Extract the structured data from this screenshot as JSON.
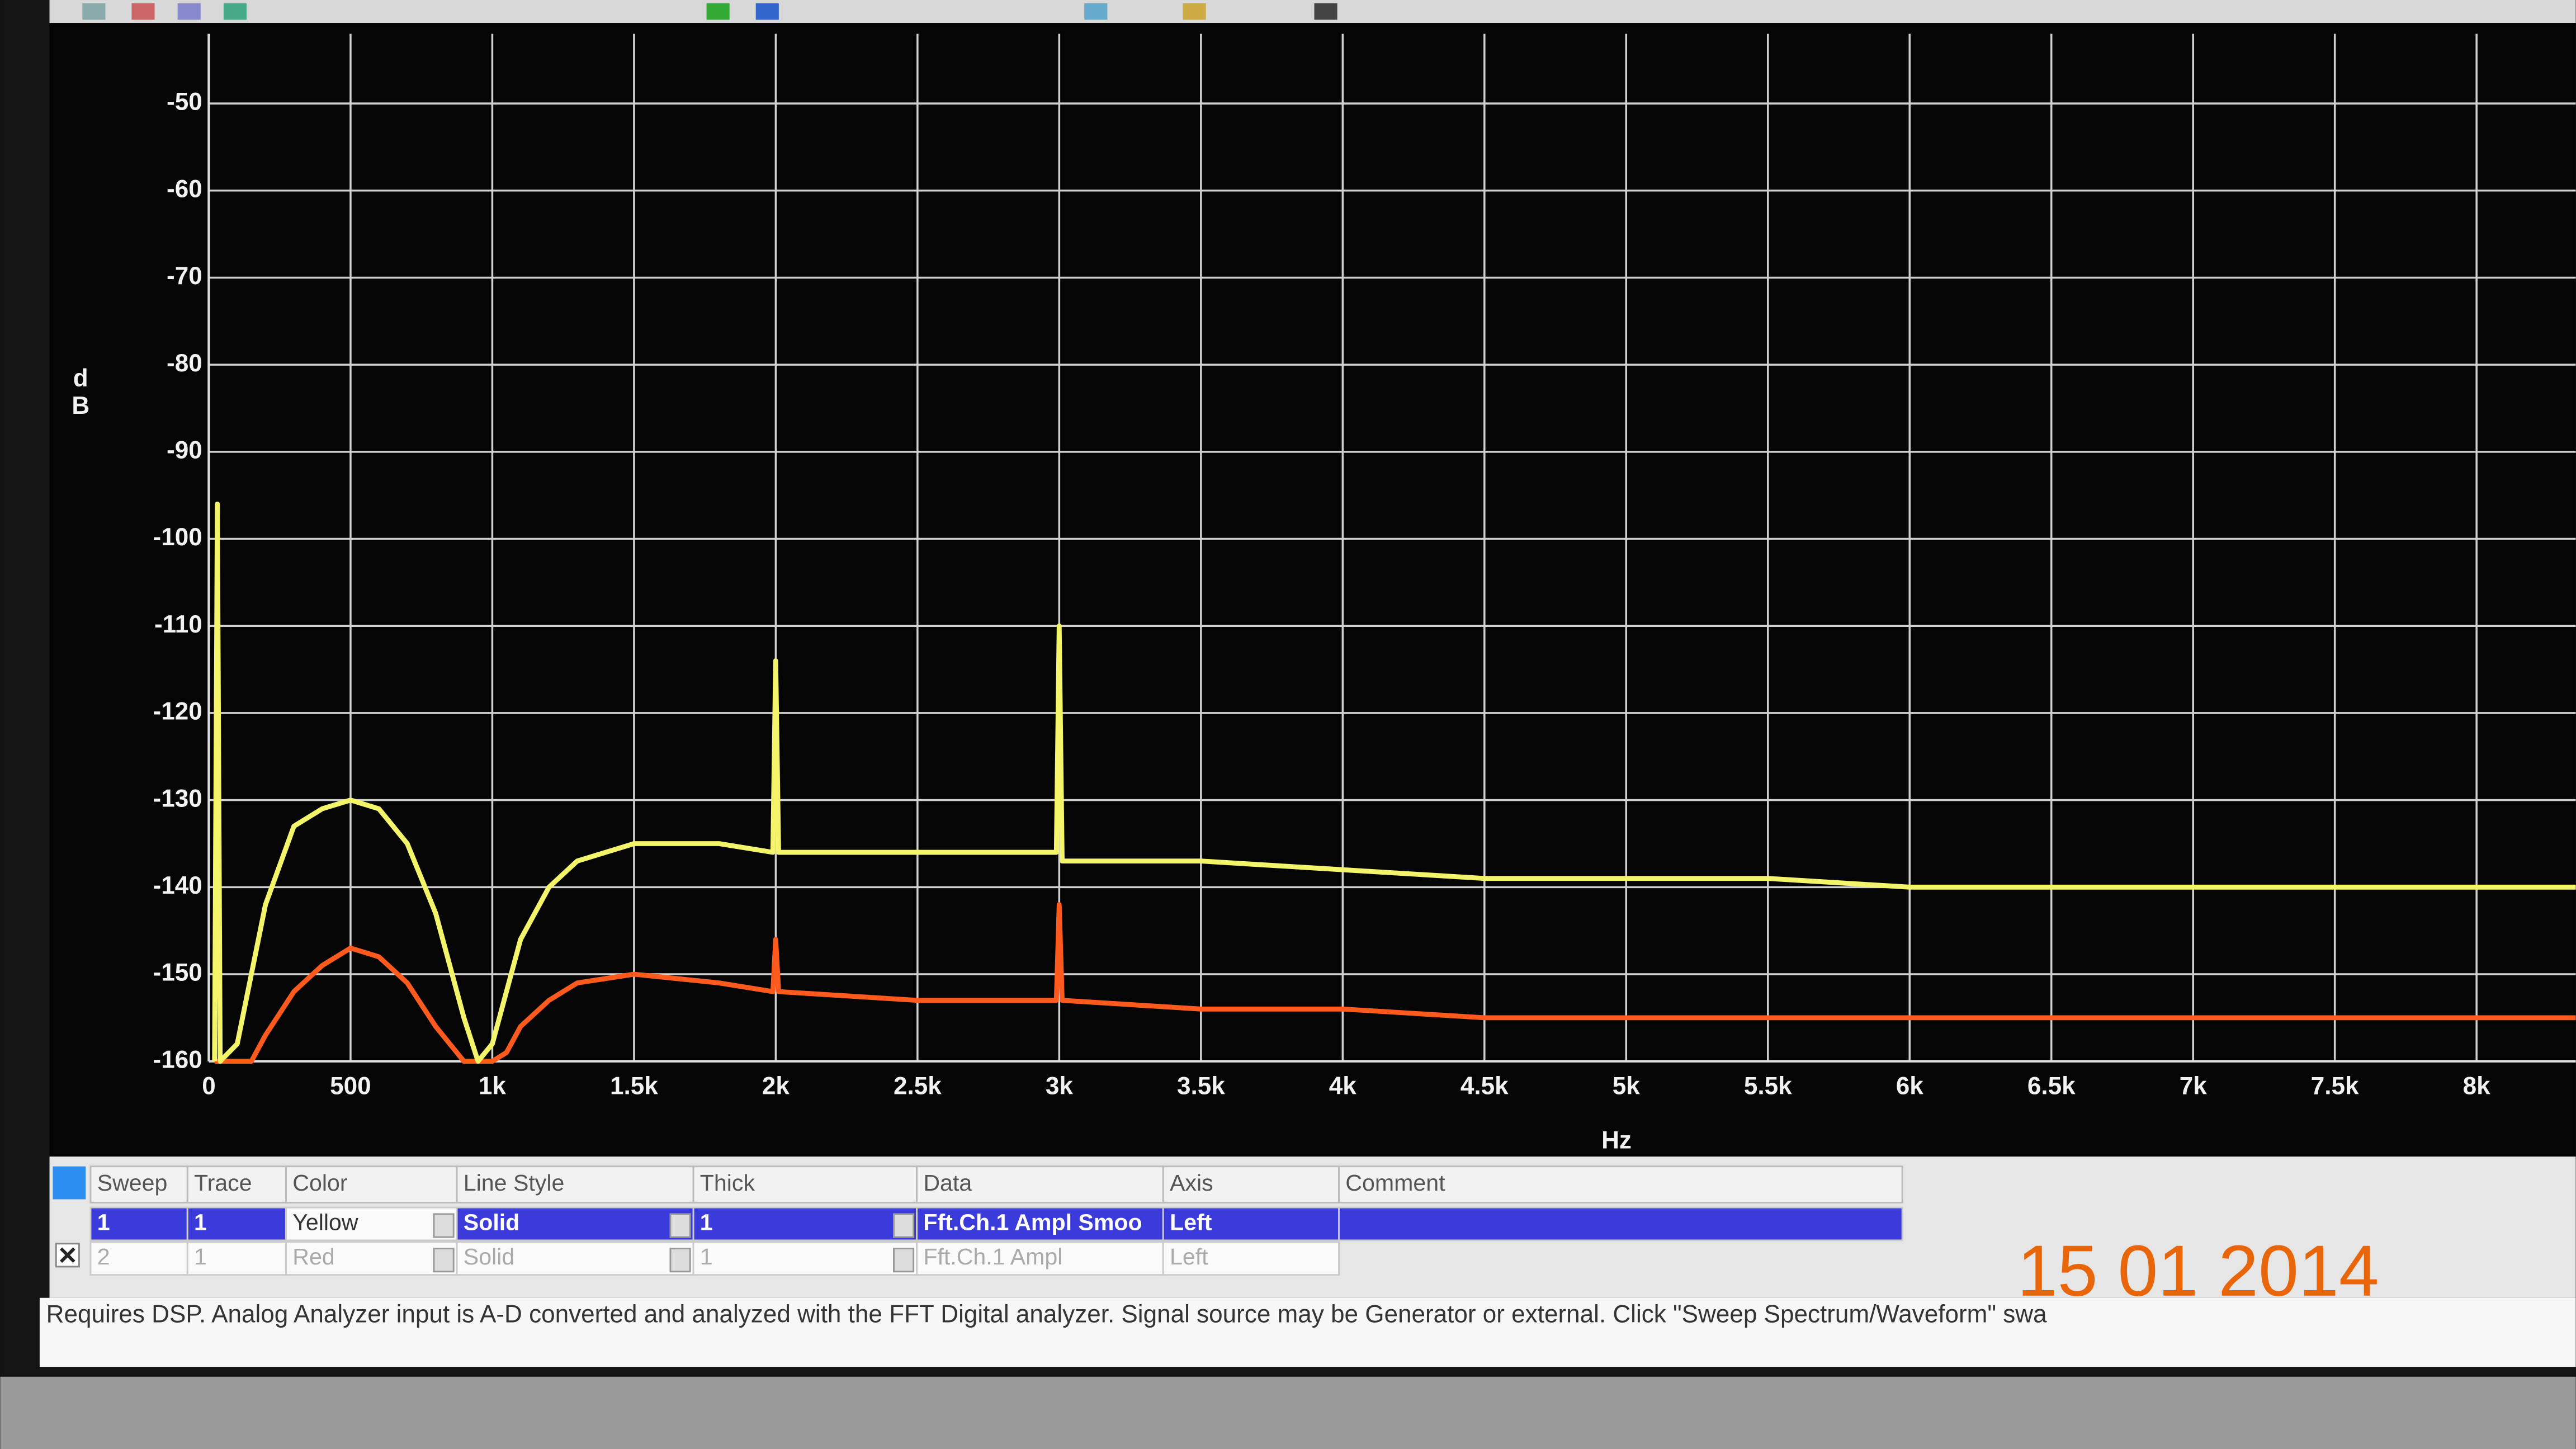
{
  "chart_data": {
    "type": "line",
    "x_label": "Hz",
    "y_label": "dB",
    "x": [
      20,
      30,
      40,
      100,
      150,
      200,
      300,
      400,
      500,
      600,
      700,
      800,
      900,
      950,
      1000,
      1050,
      1100,
      1200,
      1300,
      1500,
      1800,
      1990,
      2000,
      2010,
      2500,
      2990,
      3000,
      3010,
      3500,
      4000,
      4500,
      5000,
      5500,
      6000,
      6500,
      7000,
      7500,
      8000,
      8350
    ],
    "series": [
      {
        "color": "#f4f46a",
        "values": [
          -160,
          -96,
          -160,
          -158,
          -150,
          -142,
          -133,
          -131,
          -130,
          -131,
          -135,
          -143,
          -155,
          -160,
          -158,
          -152,
          -146,
          -140,
          -137,
          -135,
          -135,
          -136,
          -114,
          -136,
          -136,
          -136,
          -110,
          -137,
          -137,
          -138,
          -139,
          -139,
          -139,
          -140,
          -140,
          -140,
          -140,
          -140,
          -140
        ]
      },
      {
        "color": "#ff5a1e",
        "values": [
          -160,
          -160,
          -160,
          -160,
          -160,
          -157,
          -152,
          -149,
          -147,
          -148,
          -151,
          -156,
          -160,
          -160,
          -160,
          -159,
          -156,
          -153,
          -151,
          -150,
          -151,
          -152,
          -146,
          -152,
          -153,
          -153,
          -142,
          -153,
          -154,
          -154,
          -155,
          -155,
          -155,
          -155,
          -155,
          -155,
          -155,
          -155,
          -155
        ]
      }
    ],
    "xlim": [
      0,
      8350
    ],
    "ylim": [
      -160,
      -42
    ],
    "xticks": [
      0,
      500,
      {
        "value": 1000,
        "label": "1k"
      },
      {
        "value": 1500,
        "label": "1.5k"
      },
      {
        "value": 2000,
        "label": "2k"
      },
      {
        "value": 2500,
        "label": "2.5k"
      },
      {
        "value": 3000,
        "label": "3k"
      },
      {
        "value": 3500,
        "label": "3.5k"
      },
      {
        "value": 4000,
        "label": "4k"
      },
      {
        "value": 4500,
        "label": "4.5k"
      },
      {
        "value": 5000,
        "label": "5k"
      },
      {
        "value": 5500,
        "label": "5.5k"
      },
      {
        "value": 6000,
        "label": "6k"
      },
      {
        "value": 6500,
        "label": "6.5k"
      },
      {
        "value": 7000,
        "label": "7k"
      },
      {
        "value": 7500,
        "label": "7.5k"
      },
      {
        "value": 8000,
        "label": "8k"
      }
    ],
    "yticks": [
      -50,
      -60,
      -70,
      -80,
      -90,
      -100,
      -110,
      -120,
      -130,
      -140,
      -150,
      -160
    ],
    "grid": true
  },
  "table": {
    "headers": [
      "Sweep",
      "Trace",
      "Color",
      "Line Style",
      "Thick",
      "Data",
      "Axis",
      "Comment"
    ],
    "rows": [
      [
        "1",
        "1",
        "Yellow",
        "Solid",
        "1",
        "Fft.Ch.1 Ampl Smoo",
        "Left"
      ],
      [
        "2",
        "1",
        "Red",
        "Solid",
        "1",
        "Fft.Ch.1 Ampl",
        "Left"
      ]
    ]
  },
  "status": "Requires DSP.  Analog Analyzer input is A-D converted and analyzed with the FFT Digital analyzer.  Signal source may be Generator or external.  Click \"Sweep Spectrum/Waveform\" swa",
  "date_stamp": "15 01  2014"
}
